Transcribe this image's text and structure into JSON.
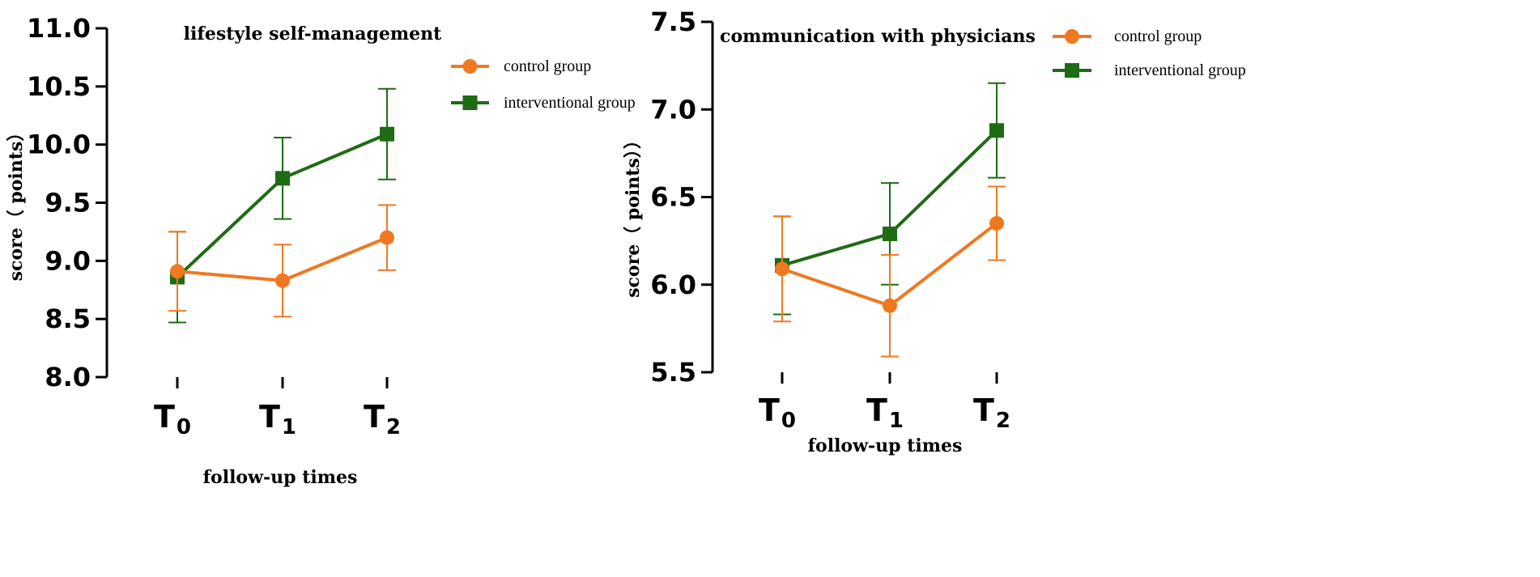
{
  "colors": {
    "control": "#f07820",
    "interventional": "#1e6b14",
    "axis": "#000000"
  },
  "chart_data": [
    {
      "type": "line",
      "title": "lifestyle self-management",
      "xlabel": "follow-up times",
      "ylabel": "score（ points）",
      "ylim": [
        8.0,
        11.0
      ],
      "yticks": [
        "8.0",
        "8.5",
        "9.0",
        "9.5",
        "10.0",
        "10.5",
        "11.0"
      ],
      "categories": [
        {
          "main": "T",
          "sub": "0"
        },
        {
          "main": "T",
          "sub": "1"
        },
        {
          "main": "T",
          "sub": "2"
        }
      ],
      "legend_position": "top-right",
      "series": [
        {
          "name": "control group",
          "marker": "circle",
          "color_key": "control",
          "values": [
            8.91,
            8.83,
            9.2
          ],
          "err_low": [
            8.57,
            8.52,
            8.92
          ],
          "err_high": [
            9.25,
            9.14,
            9.48
          ]
        },
        {
          "name": "interventional group",
          "marker": "square",
          "color_key": "interventional",
          "values": [
            8.86,
            9.71,
            10.09
          ],
          "err_low": [
            8.47,
            9.36,
            9.7
          ],
          "err_high": [
            9.25,
            10.06,
            10.48
          ]
        }
      ]
    },
    {
      "type": "line",
      "title": "communication with physicians",
      "xlabel": "follow-up times",
      "ylabel": "score（ points））",
      "ylim": [
        5.5,
        7.5
      ],
      "yticks": [
        "5.5",
        "6.0",
        "6.5",
        "7.0",
        "7.5"
      ],
      "categories": [
        {
          "main": "T",
          "sub": "0"
        },
        {
          "main": "T",
          "sub": "1"
        },
        {
          "main": "T",
          "sub": "2"
        }
      ],
      "legend_position": "top-right",
      "series": [
        {
          "name": "control group",
          "marker": "circle",
          "color_key": "control",
          "values": [
            6.09,
            5.88,
            6.35
          ],
          "err_low": [
            5.79,
            5.59,
            6.14
          ],
          "err_high": [
            6.39,
            6.17,
            6.56
          ]
        },
        {
          "name": "interventional group",
          "marker": "square",
          "color_key": "interventional",
          "values": [
            6.11,
            6.29,
            6.88
          ],
          "err_low": [
            5.83,
            6.0,
            6.61
          ],
          "err_high": [
            6.39,
            6.58,
            7.15
          ]
        }
      ]
    }
  ]
}
